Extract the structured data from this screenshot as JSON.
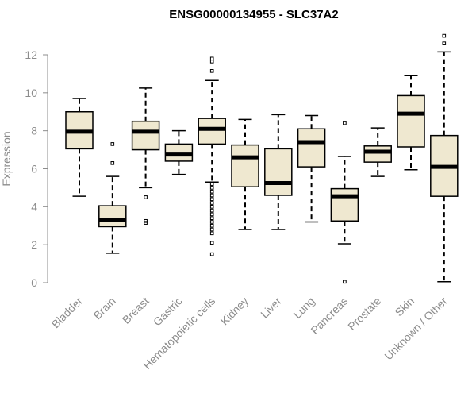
{
  "chart_data": {
    "type": "boxplot",
    "title": "ENSG00000134955 - SLC37A2",
    "xlabel": "",
    "ylabel": "Expression",
    "ylim": [
      0,
      12
    ],
    "yticks": [
      0,
      2,
      4,
      6,
      8,
      10,
      12
    ],
    "box_color": "#efe8d0",
    "categories": [
      "Bladder",
      "Brain",
      "Breast",
      "Gastric",
      "Hematopoietic cells",
      "Kidney",
      "Liver",
      "Lung",
      "Pancreas",
      "Prostate",
      "Skin",
      "Unknown / Other"
    ],
    "boxes": [
      {
        "name": "Bladder",
        "whisker_low": 4.55,
        "q1": 7.05,
        "median": 7.95,
        "q3": 9.0,
        "whisker_high": 9.7,
        "outliers": []
      },
      {
        "name": "Brain",
        "whisker_low": 1.55,
        "q1": 2.95,
        "median": 3.3,
        "q3": 4.05,
        "whisker_high": 5.6,
        "outliers": [
          6.3,
          7.3
        ]
      },
      {
        "name": "Breast",
        "whisker_low": 5.0,
        "q1": 7.0,
        "median": 7.95,
        "q3": 8.5,
        "whisker_high": 10.25,
        "outliers": [
          4.5,
          3.25,
          3.15
        ]
      },
      {
        "name": "Gastric",
        "whisker_low": 5.7,
        "q1": 6.4,
        "median": 6.75,
        "q3": 7.3,
        "whisker_high": 8.0,
        "outliers": []
      },
      {
        "name": "Hematopoietic cells",
        "whisker_low": 5.3,
        "q1": 7.3,
        "median": 8.1,
        "q3": 8.65,
        "whisker_high": 10.65,
        "outliers": [
          11.15,
          11.65,
          11.8,
          5.2,
          5.0,
          4.8,
          4.6,
          4.4,
          4.2,
          4.0,
          3.8,
          3.6,
          3.4,
          3.2,
          3.0,
          2.8,
          2.6,
          2.1,
          1.5
        ]
      },
      {
        "name": "Kidney",
        "whisker_low": 2.8,
        "q1": 5.05,
        "median": 6.6,
        "q3": 7.25,
        "whisker_high": 8.6,
        "outliers": []
      },
      {
        "name": "Liver",
        "whisker_low": 2.8,
        "q1": 4.6,
        "median": 5.25,
        "q3": 7.05,
        "whisker_high": 8.85,
        "outliers": []
      },
      {
        "name": "Lung",
        "whisker_low": 3.2,
        "q1": 6.1,
        "median": 7.4,
        "q3": 8.1,
        "whisker_high": 8.8,
        "outliers": []
      },
      {
        "name": "Pancreas",
        "whisker_low": 2.05,
        "q1": 3.25,
        "median": 4.55,
        "q3": 4.95,
        "whisker_high": 6.65,
        "outliers": [
          8.4,
          0.05
        ]
      },
      {
        "name": "Prostate",
        "whisker_low": 5.6,
        "q1": 6.35,
        "median": 6.9,
        "q3": 7.2,
        "whisker_high": 8.15,
        "outliers": []
      },
      {
        "name": "Skin",
        "whisker_low": 5.95,
        "q1": 7.15,
        "median": 8.9,
        "q3": 9.85,
        "whisker_high": 10.9,
        "outliers": []
      },
      {
        "name": "Unknown / Other",
        "whisker_low": 0.05,
        "q1": 4.55,
        "median": 6.1,
        "q3": 7.75,
        "whisker_high": 12.15,
        "outliers": [
          12.6,
          13.0
        ]
      }
    ]
  }
}
